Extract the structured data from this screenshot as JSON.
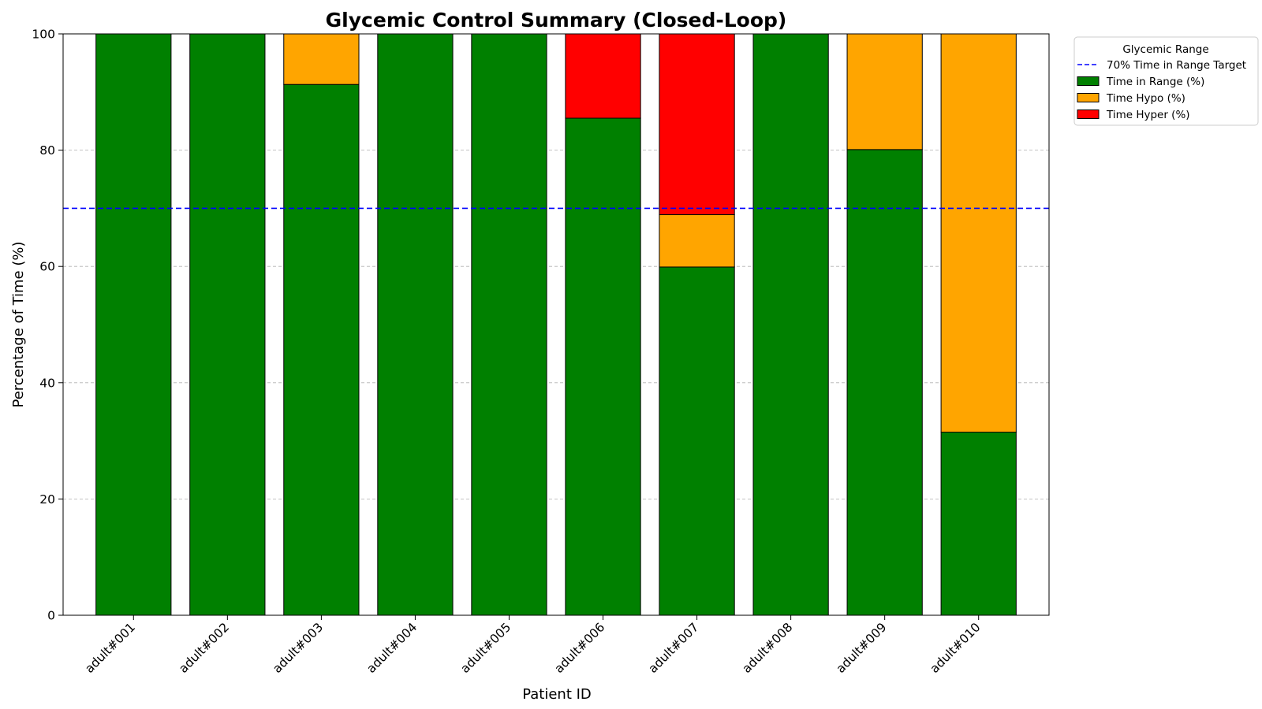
{
  "chart_data": {
    "type": "bar",
    "stacked": true,
    "title": "Glycemic Control Summary (Closed-Loop)",
    "xlabel": "Patient ID",
    "ylabel": "Percentage of Time (%)",
    "ylim": [
      0,
      100
    ],
    "yticks": [
      0,
      20,
      40,
      60,
      80,
      100
    ],
    "grid": "y-dashed",
    "categories": [
      "adult#001",
      "adult#002",
      "adult#003",
      "adult#004",
      "adult#005",
      "adult#006",
      "adult#007",
      "adult#008",
      "adult#009",
      "adult#010"
    ],
    "series": [
      {
        "name": "Time in Range (%)",
        "color": "#008000",
        "values": [
          100,
          100,
          91.3,
          100,
          100,
          85.5,
          59.9,
          100,
          80.1,
          31.5
        ]
      },
      {
        "name": "Time Hypo (%)",
        "color": "#FFA500",
        "values": [
          0,
          0,
          8.7,
          0,
          0,
          0,
          9.0,
          0,
          19.9,
          68.5
        ]
      },
      {
        "name": "Time Hyper (%)",
        "color": "#FF0000",
        "values": [
          0,
          0,
          0,
          0,
          0,
          14.5,
          31.1,
          0,
          0,
          0
        ]
      }
    ],
    "reference_line": {
      "name": "70% Time in Range Target",
      "value": 70,
      "color": "#0000FF",
      "style": "dashed"
    },
    "legend": {
      "title": "Glycemic Range",
      "placement": "outside-top-right"
    }
  }
}
